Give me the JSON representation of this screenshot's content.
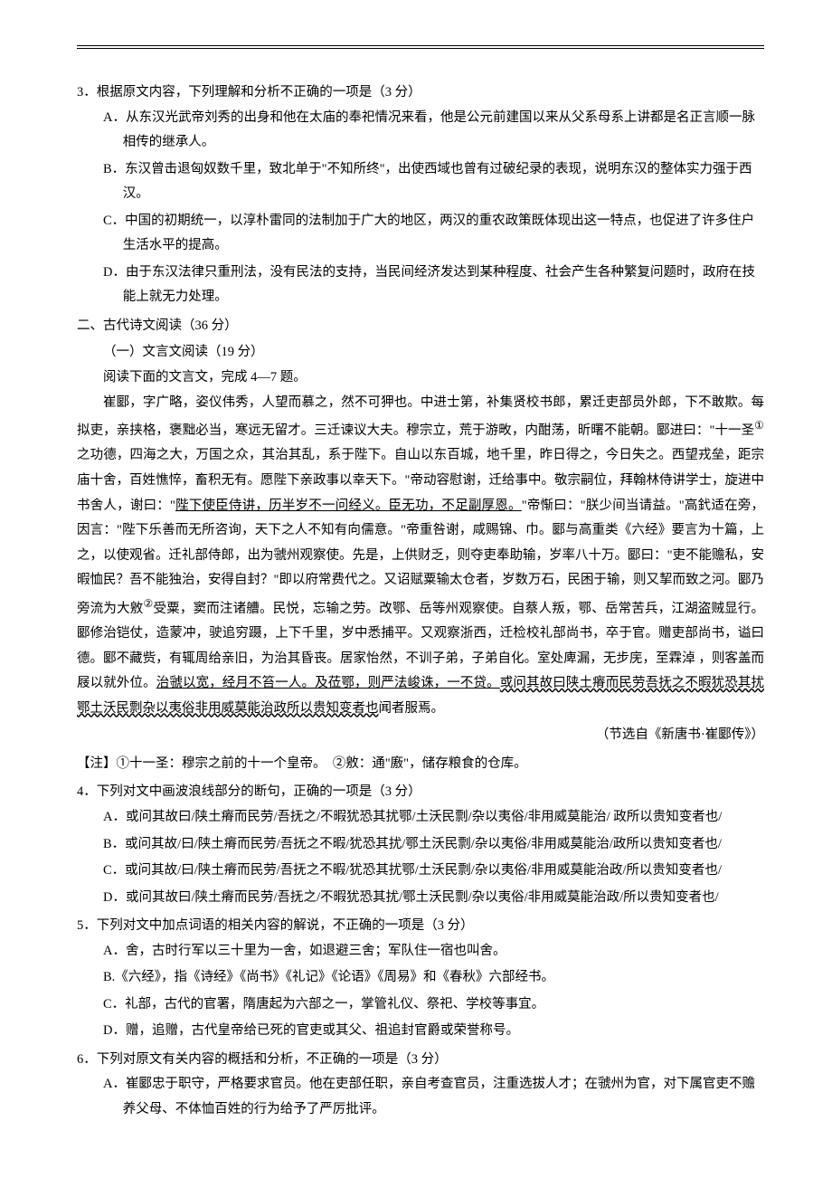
{
  "q3": {
    "stem": "3．根据原文内容，下列理解和分析不正确的一项是（3 分）",
    "optA": "A．从东汉光武帝刘秀的出身和他在太庙的奉祀情况来看，他是公元前建国以来从父系母系上讲都是名正言顺一脉相传的继承人。",
    "optB": "B．东汉曾击退匈奴数千里，致北单于\"不知所终\"，出使西域也曾有过破纪录的表现，说明东汉的整体实力强于西汉。",
    "optC": "C．中国的初期统一，以淳朴雷同的法制加于广大的地区，两汉的重农政策既体现出这一特点，也促进了许多住户生活水平的提高。",
    "optD": "D．由于东汉法律只重刑法，没有民法的支持，当民间经济发达到某种程度、社会产生各种繁复问题时，政府在技能上就无力处理。"
  },
  "section2": {
    "title": "二、古代诗文阅读（36 分）",
    "sub1": "（一）文言文阅读（19 分）",
    "instruction": "阅读下面的文言文，完成 4—7 题。"
  },
  "passage": {
    "p1a": "崔郾，字广略，姿仪伟秀，人望而慕之，然不可狎也。中进士第，补集贤校书郎，累迁吏部员外郎，下不敢欺。每拟吏，亲挟格，褒黜必当，寒远无留才。三迁谏议大夫。穆宗立，荒于游畋，内酣荡，昕曙不能朝。郾进曰：\"十一圣",
    "p1b": "之功德，四海之大，万国之众，其治其乱，系于陛下。自山以东百城，地千里，昨日得之，今日失之。西望戎垒，距宗庙十舍，百姓憔悴，畜积无有。愿陛下亲政事以幸天下。\"帝动容慰谢，迁给事中。敬宗嗣位，拜翰林侍讲学士，旋进中书舍人，谢曰：\"",
    "p1u": "陛下使臣侍讲，历半岁不一问经义。臣无功，不足副厚恩。",
    "p1c": "\"帝惭曰：\"朕少间当请益。\"高釴适在旁，因言：\"陛下乐善而无所咨询，天下之人不知有向儒意。\"帝重咎谢，咸赐锦、巾。郾与高重类《六经》要言为十篇，上之，以使观省。迁礼部侍郎，出为虢州观察使。先是，上供财乏，则夺吏奉助输，岁率八十万。郾曰：\"吏不能赡私，安暇恤民？吾不能独治，安得自封？\"即以府常费代之。又诏赋粟输太仓者，岁数万石，民困于输，则又挈而致之河。郾乃旁流为大敫",
    "p1d": "受粟，窦而注诸艚。民悦，忘输之劳。改鄂、岳等州观察使。自蔡人叛，鄂、岳常苦兵，江湖盗贼显行。郾修治铠仗，造蒙冲，驶追穷蹑，上下千里，岁中悉捕平。又观察浙西，迁检校礼部尚书，卒于官。赠吏部尚书，谥曰德。郾不藏赀，有辄周给亲旧，为治其昏丧。居家怡然，不训子弟，子弟自化。室处庳漏，无步庑，至霖淖 ，则客盖而屐以就外位。",
    "p1u2": "治虢以宽，经月不笞一人。及莅鄂，则严法峻诛，一不贷。",
    "p1w": "或问其故曰陕土瘠而民劳吾抚之不暇犹恐其扰鄂土沃民剽杂以夷俗非用威莫能治政所以贵知变者也",
    "p1e": "闻者服焉。"
  },
  "source": "（节选自《新唐书·崔郾传》）",
  "note": "【注】①十一圣：穆宗之前的十一个皇帝。　②敫：通\"廒\"，储存粮食的仓库。",
  "q4": {
    "stem": "4．下列对文中画波浪线部分的断句，正确的一项是（3 分）",
    "optA": "A．或问其故曰/陕土瘠而民劳/吾抚之/不暇犹恐其扰鄂/土沃民剽/杂以夷俗/非用威莫能治/ 政所以贵知变者也/",
    "optB": "B．或问其故/曰/陕土瘠而民劳/吾抚之不暇/犹恐其扰/鄂土沃民剽/杂以夷俗/非用威莫能治/政所以贵知变者也/",
    "optC": "C．或问其故/曰/陕土瘠而民劳/吾抚之不暇/犹恐其扰鄂/土沃民剽/杂以夷俗/非用威莫能治政/所以贵知变者也/",
    "optD": "D．或问其故曰/陕土瘠而民劳/吾抚之/不暇犹恐其扰/鄂土沃民剽/杂以夷俗/非用威莫能治政/所以贵知变者也/"
  },
  "q5": {
    "stem": "5．下列对文中加点词语的相关内容的解说，不正确的一项是（3 分）",
    "optA": "A．舍，古时行军以三十里为一舍，如退避三舍；军队住一宿也叫舍。",
    "optB": "B.《六经》，指《诗经》《尚书》《礼记》《论语》《周易》和《春秋》六部经书。",
    "optC": "C．礼部，古代的官署，隋唐起为六部之一，掌管礼仪、祭祀、学校等事宜。",
    "optD": "D．赠，追赠，古代皇帝给已死的官吏或其父、祖追封官爵或荣誉称号。"
  },
  "q6": {
    "stem": "6．下列对原文有关内容的概括和分析，不正确的一项是（3 分）",
    "optA": "A．崔郾忠于职守，严格要求官员。他在吏部任职，亲自考查官员，注重选拔人才；在虢州为官，对下属官吏不赡养父母、不体恤百姓的行为给予了严厉批评。"
  }
}
